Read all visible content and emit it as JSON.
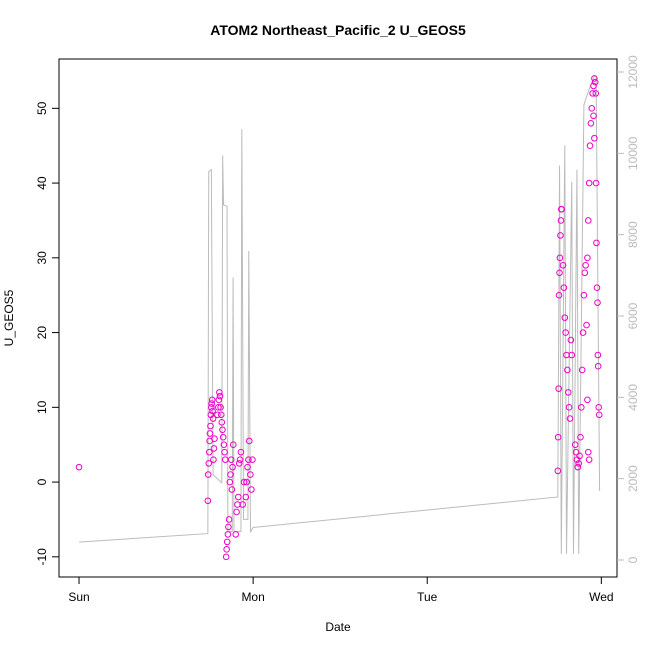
{
  "chart_data": {
    "type": "scatter",
    "title": "ATOM2 Northeast_Pacific_2 U_GEOS5",
    "x_label": "Date",
    "y_label": "U_GEOS5",
    "xlim": [
      -0.115,
      3.09
    ],
    "xticks": [
      {
        "value": 0,
        "label": "Sun"
      },
      {
        "value": 1,
        "label": "Mon"
      },
      {
        "value": 2,
        "label": "Tue"
      },
      {
        "value": 3,
        "label": "Wed"
      }
    ],
    "ylim": [
      -12.7,
      56.6
    ],
    "yticks": [
      -10,
      0,
      10,
      20,
      30,
      40,
      50
    ],
    "y2lim": [
      -418,
      12320
    ],
    "y2ticks": [
      0,
      2000,
      4000,
      6000,
      8000,
      10000,
      12000
    ],
    "series": [
      {
        "type": "scatter",
        "color": "#f000c8",
        "x": [
          0,
          0.74,
          0.742,
          0.745,
          0.748,
          0.75,
          0.752,
          0.755,
          0.757,
          0.76,
          0.762,
          0.765,
          0.767,
          0.77,
          0.772,
          0.775,
          0.778,
          0.795,
          0.8,
          0.803,
          0.806,
          0.81,
          0.813,
          0.817,
          0.82,
          0.824,
          0.828,
          0.832,
          0.836,
          0.84,
          0.845,
          0.848,
          0.851,
          0.855,
          0.858,
          0.862,
          0.866,
          0.87,
          0.874,
          0.878,
          0.882,
          0.886,
          0.9,
          0.905,
          0.91,
          0.915,
          0.92,
          0.925,
          0.93,
          0.94,
          0.948,
          0.958,
          0.963,
          0.968,
          0.973,
          0.978,
          0.984,
          0.99,
          0.996,
          2.75,
          2.752,
          2.755,
          2.757,
          2.76,
          2.762,
          2.765,
          2.768,
          2.77,
          2.772,
          2.78,
          2.785,
          2.79,
          2.795,
          2.8,
          2.805,
          2.81,
          2.815,
          2.82,
          2.825,
          2.83,
          2.85,
          2.855,
          2.86,
          2.865,
          2.87,
          2.875,
          2.88,
          2.885,
          2.89,
          2.895,
          2.9,
          2.905,
          2.91,
          2.915,
          2.92,
          2.925,
          2.93,
          2.92,
          2.925,
          2.93,
          2.935,
          2.94,
          2.945,
          2.95,
          2.955,
          2.96,
          2.965,
          2.968,
          2.955,
          2.96,
          2.97,
          2.972,
          2.975,
          2.978,
          2.98,
          2.982,
          2.985,
          2.988
        ],
        "values": [
          2,
          -2.5,
          1,
          2.5,
          4,
          5.5,
          6.5,
          7.5,
          9,
          10,
          10.5,
          11,
          9.5,
          8.5,
          3,
          4.5,
          5.8,
          9,
          10,
          11,
          12,
          11.5,
          10,
          9,
          8,
          7,
          6,
          5,
          4,
          3,
          -10,
          -9,
          -8,
          -7,
          -6,
          -5,
          0,
          1,
          3,
          -1,
          2,
          5,
          -7,
          -4,
          -3,
          -2,
          2.5,
          3,
          4,
          -3,
          0,
          -2,
          0,
          2,
          3,
          5.5,
          1,
          -1,
          3,
          1.5,
          6,
          12.5,
          25,
          28,
          30,
          33,
          35,
          36.5,
          36.5,
          29,
          26,
          22,
          20,
          17,
          15,
          12,
          10,
          8.5,
          19,
          17,
          5,
          4,
          3,
          2,
          2.5,
          3.5,
          6,
          10,
          15,
          20,
          25,
          28,
          29,
          21,
          11,
          4,
          3,
          30,
          35,
          40,
          45,
          48,
          50,
          52,
          53,
          54,
          53.5,
          52,
          49,
          46,
          40,
          32,
          26,
          24,
          17,
          15.5,
          10,
          9
        ]
      },
      {
        "type": "line",
        "axis": "y2",
        "color": "#bbbbbb",
        "x": [
          0,
          0.74,
          0.745,
          0.76,
          0.77,
          0.82,
          0.825,
          0.83,
          0.85,
          0.855,
          0.88,
          0.885,
          0.89,
          0.93,
          0.935,
          0.945,
          0.97,
          0.975,
          0.985,
          1.0,
          2.75,
          2.76,
          2.77,
          2.79,
          2.8,
          2.83,
          2.84,
          2.86,
          2.87,
          2.9,
          2.94,
          2.96,
          2.97,
          2.99
        ],
        "values": [
          440,
          650,
          9550,
          9600,
          2100,
          1900,
          9950,
          8730,
          8700,
          700,
          700,
          6950,
          700,
          700,
          10600,
          1000,
          1000,
          7600,
          700,
          800,
          1550,
          9700,
          150,
          10200,
          150,
          9300,
          150,
          9600,
          150,
          11200,
          11700,
          11900,
          11900,
          1700
        ]
      }
    ]
  }
}
